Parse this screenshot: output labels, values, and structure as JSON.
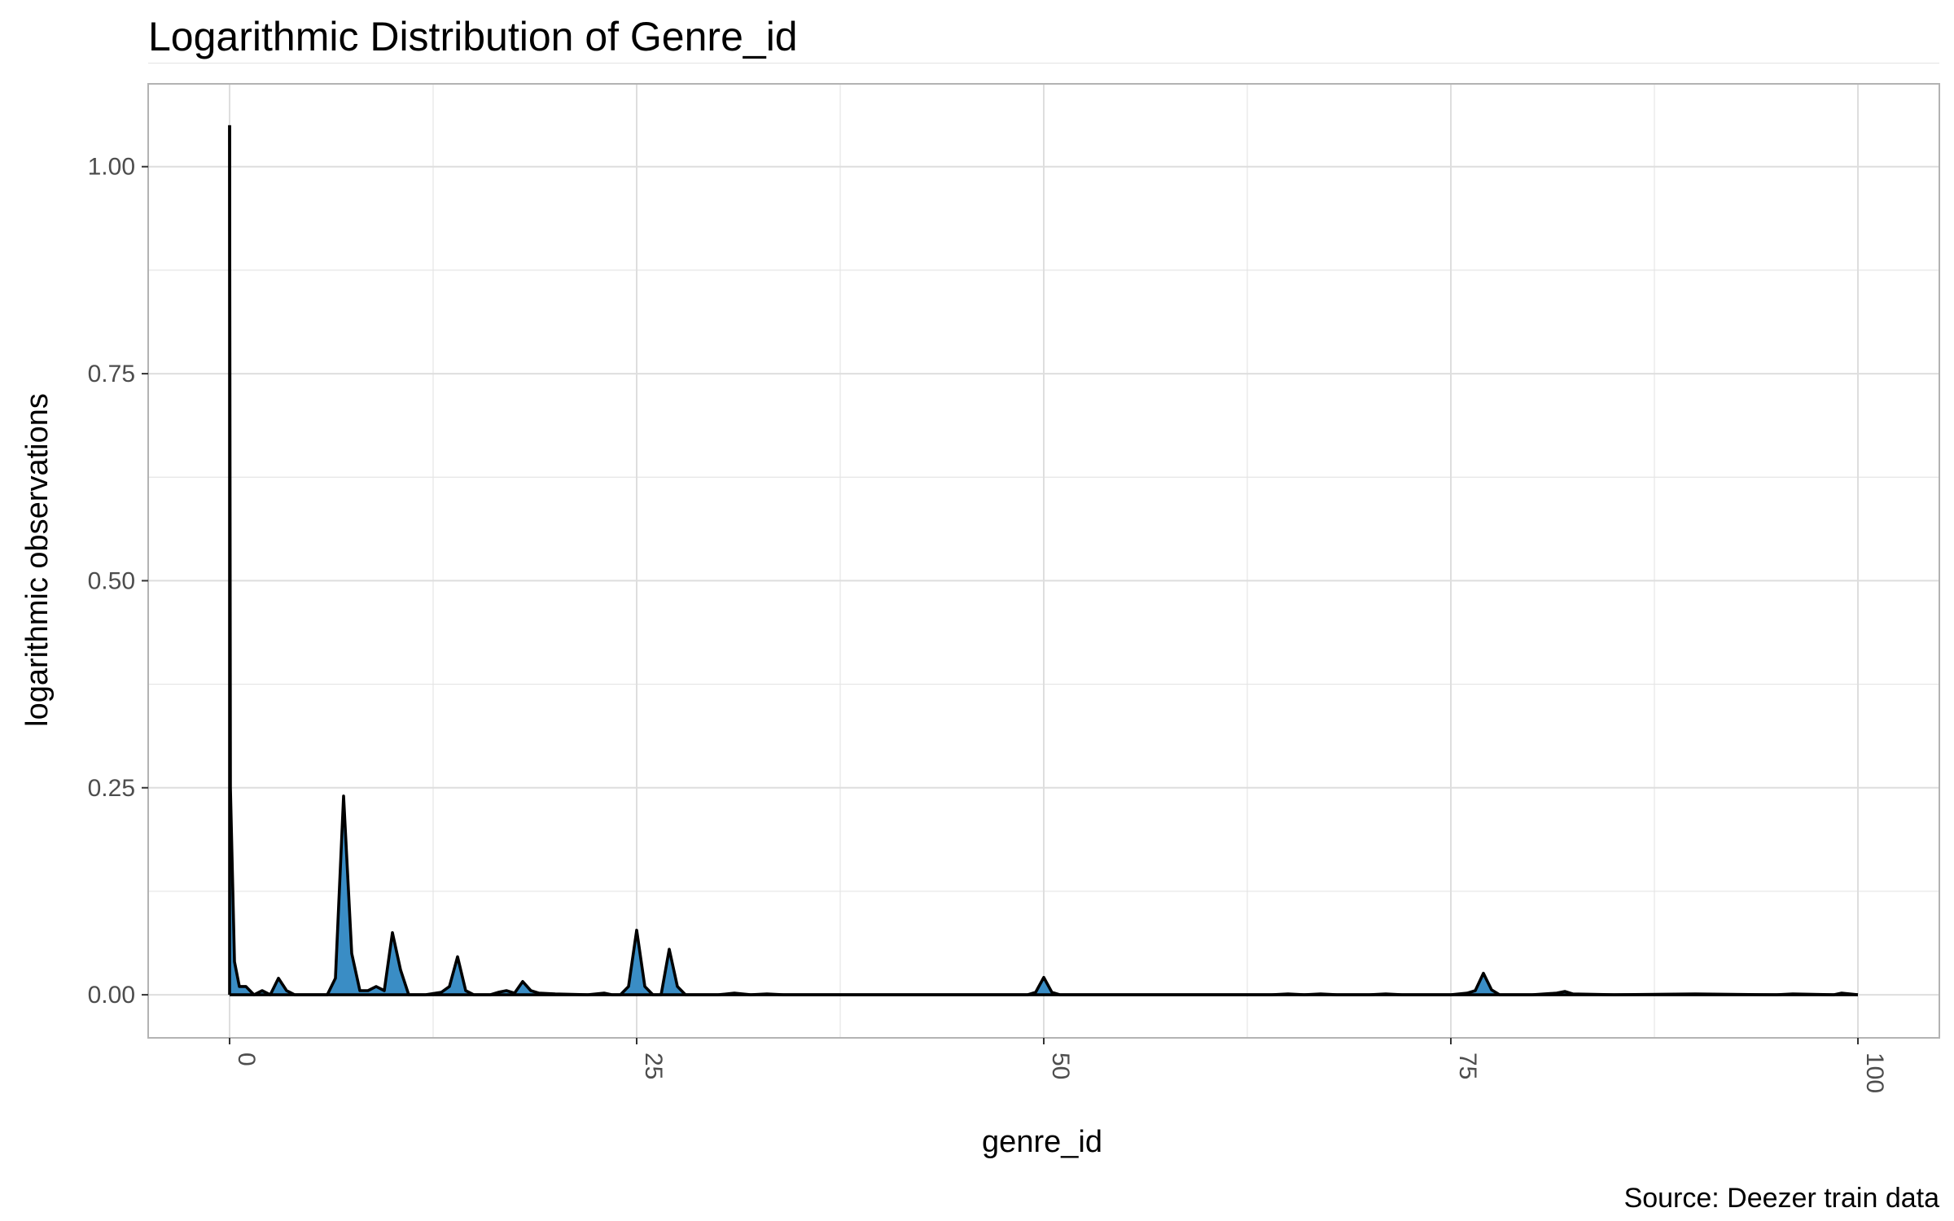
{
  "chart_data": {
    "type": "area",
    "title": "Logarithmic Distribution of Genre_id",
    "subtitle": "",
    "xlabel": "genre_id",
    "ylabel": "logarithmic observations",
    "caption": "Source: Deezer train data",
    "xlim": [
      -5,
      105
    ],
    "ylim": [
      -0.052,
      1.1
    ],
    "x_ticks": [
      0,
      25,
      50,
      75,
      100
    ],
    "x_tick_labels": [
      "0",
      "25",
      "50",
      "75",
      "100"
    ],
    "y_ticks": [
      0,
      0.25,
      0.5,
      0.75,
      1.0
    ],
    "y_tick_labels": [
      "0.00",
      "0.25",
      "0.50",
      "0.75",
      "1.00"
    ],
    "grid": true,
    "legend": "none",
    "colors": {
      "fill": "#3a8dc5",
      "line": "#000000",
      "grid": "#e5e5e5",
      "panel_border": "#b3b3b3"
    },
    "series": [
      {
        "x": [
          0,
          0.05,
          0.3,
          0.6,
          1,
          1.5,
          2,
          2.5,
          3,
          3.5,
          4,
          5,
          6,
          6.5,
          7,
          7.5,
          8,
          8.5,
          9,
          9.5,
          10,
          10.5,
          11,
          12,
          13,
          13.5,
          14,
          14.5,
          15,
          16,
          16.5,
          17,
          17.5,
          18,
          18.5,
          19,
          20,
          22,
          23,
          23.5,
          24,
          24.5,
          25,
          25.5,
          26,
          26.5,
          27,
          27.5,
          28,
          30,
          31,
          32,
          33,
          34,
          40,
          49,
          49.5,
          50,
          50.5,
          51,
          60,
          64,
          65,
          66,
          67,
          68,
          70,
          71,
          72,
          75,
          76,
          76.5,
          77,
          77.5,
          78,
          80,
          81.5,
          82,
          82.5,
          85,
          90,
          95,
          96,
          98.5,
          99,
          100
        ],
        "y": [
          1.05,
          0.25,
          0.04,
          0.01,
          0.01,
          0.0,
          0.005,
          0.0,
          0.02,
          0.005,
          0.0,
          0.0,
          0.0,
          0.02,
          0.24,
          0.05,
          0.005,
          0.005,
          0.01,
          0.005,
          0.075,
          0.03,
          0.0,
          0.0,
          0.003,
          0.01,
          0.046,
          0.005,
          0.0,
          0.0,
          0.003,
          0.005,
          0.002,
          0.016,
          0.005,
          0.002,
          0.001,
          0.0,
          0.002,
          0.0,
          0.0,
          0.01,
          0.078,
          0.01,
          0.0,
          0.0,
          0.055,
          0.01,
          0.0,
          0.0,
          0.002,
          0.0,
          0.001,
          0.0,
          0.0,
          0.0,
          0.003,
          0.021,
          0.003,
          0.0,
          0.0,
          0.0,
          0.001,
          0.0,
          0.001,
          0.0,
          0.0,
          0.001,
          0.0,
          0.0,
          0.002,
          0.005,
          0.026,
          0.006,
          0.0,
          0.0,
          0.002,
          0.004,
          0.001,
          0.0,
          0.001,
          0.0,
          0.001,
          0.0,
          0.002,
          0.0
        ]
      }
    ]
  }
}
